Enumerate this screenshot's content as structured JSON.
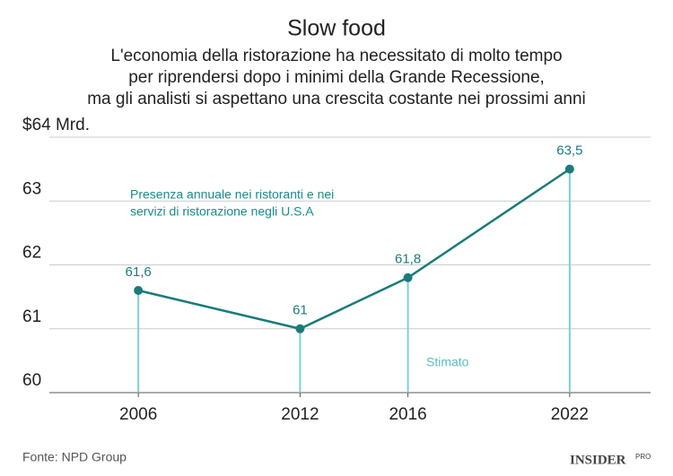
{
  "chart_data": {
    "type": "line",
    "title": "Slow food",
    "subtitle": [
      "L'economia della ristorazione ha necessitato di molto tempo",
      "per riprendersi dopo i minimi della Grande Recessione,",
      "ma gli analisti si aspettano una crescita costante nei prossimi anni"
    ],
    "x": [
      2006,
      2012,
      2016,
      2022
    ],
    "values": [
      61.6,
      61,
      61.8,
      63.5
    ],
    "value_labels": [
      "61,6",
      "61",
      "61,8",
      "63,5"
    ],
    "color": "#1b7b7b",
    "drop_line_color": "#7fcfcf",
    "xlim": [
      2002.7,
      2025
    ],
    "xticks": [
      2006,
      2012,
      2016,
      2022
    ],
    "ylim": [
      60,
      64
    ],
    "yticks": [
      60,
      61,
      62,
      63,
      {
        "value": 64,
        "label": "$64 Mrd."
      }
    ],
    "grid": true,
    "annotation": [
      "Presenza annuale nei ristoranti e nei",
      "servizi di ristorazione negli U.S.A"
    ],
    "estimate_label": "Stimato",
    "source": "Fonte: NPD Group",
    "logo": "INSIDER",
    "logo_sub": "PRO"
  }
}
